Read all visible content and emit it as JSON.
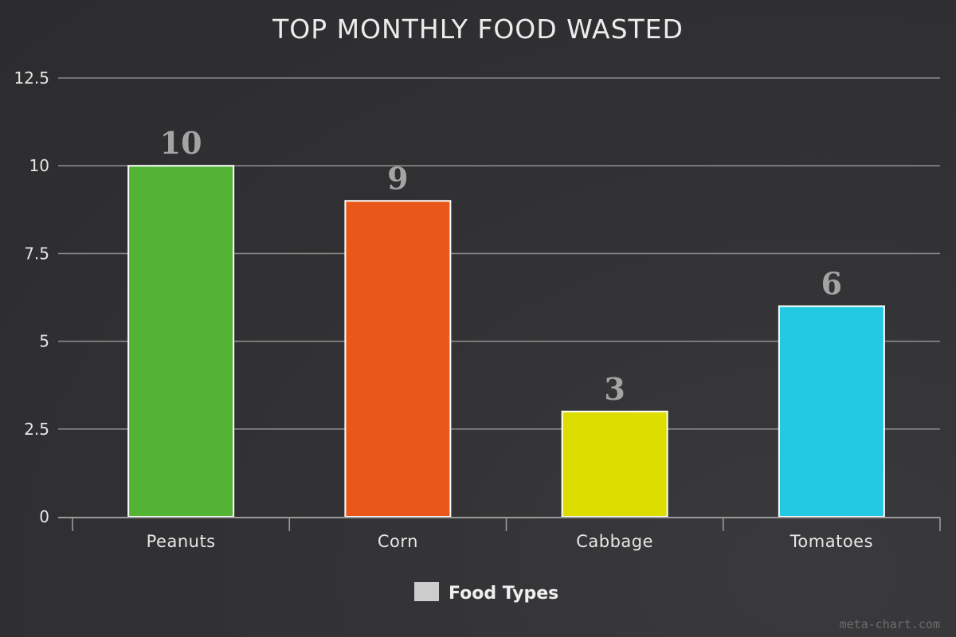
{
  "colors": {
    "grid": "#8a8a8a",
    "axis": "#9a9a9a",
    "bar_border": "#ffffff",
    "legend_swatch": "#cccccc"
  },
  "watermark": "meta-chart.com",
  "chart_data": {
    "type": "bar",
    "title": "TOP MONTHLY FOOD WASTED",
    "xlabel": "",
    "ylabel": "",
    "categories": [
      "Peanuts",
      "Corn",
      "Cabbage",
      "Tomatoes"
    ],
    "series": [
      {
        "name": "Food Types",
        "values": [
          10,
          9,
          3,
          6
        ],
        "colors": [
          "#52b335",
          "#ea571b",
          "#dddd00",
          "#23c8e3"
        ]
      }
    ],
    "ylim": [
      0,
      12.5
    ],
    "yticks": [
      0,
      2.5,
      5,
      7.5,
      10,
      12.5
    ],
    "ytick_labels": [
      "0",
      "2.5",
      "5",
      "7.5",
      "10",
      "12.5"
    ],
    "grid": true,
    "data_labels": true,
    "legend_position": "bottom-center"
  }
}
